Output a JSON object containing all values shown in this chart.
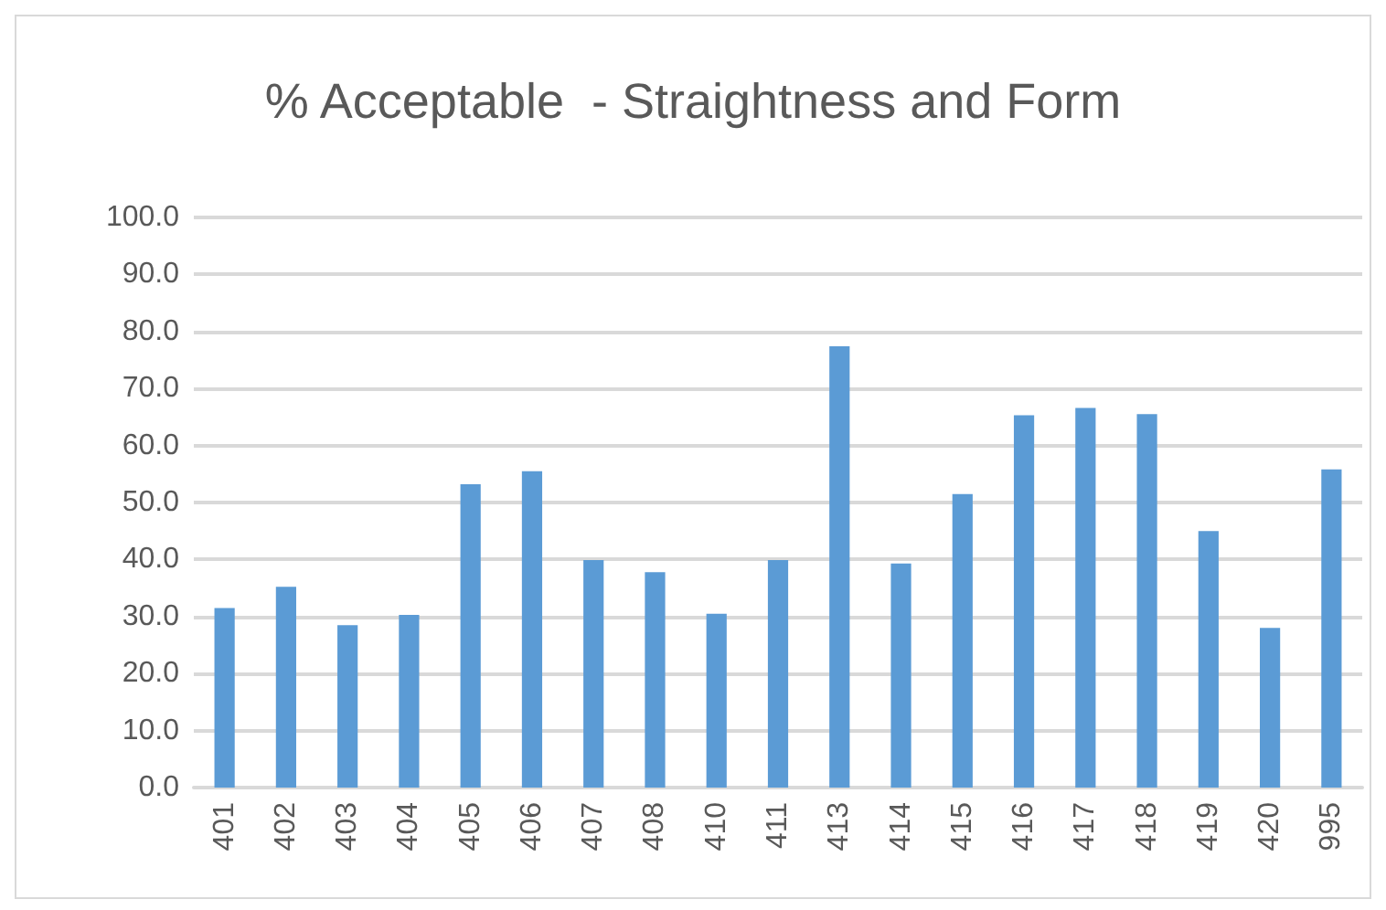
{
  "chart_data": {
    "type": "bar",
    "title": "% Acceptable  - Straightness and Form",
    "categories": [
      "401",
      "402",
      "403",
      "404",
      "405",
      "406",
      "407",
      "408",
      "410",
      "411",
      "413",
      "414",
      "415",
      "416",
      "417",
      "418",
      "419",
      "420",
      "995"
    ],
    "values": [
      31.5,
      35.2,
      28.5,
      30.3,
      53.2,
      55.5,
      39.9,
      37.8,
      30.5,
      39.9,
      77.4,
      39.3,
      51.5,
      65.3,
      66.6,
      65.5,
      45.0,
      28.0,
      55.8
    ],
    "color": "#5b9bd5",
    "ylim": [
      0,
      100
    ],
    "yticks": [
      {
        "value": 0,
        "label": "0.0"
      },
      {
        "value": 10,
        "label": "10.0"
      },
      {
        "value": 20,
        "label": "20.0"
      },
      {
        "value": 30,
        "label": "30.0"
      },
      {
        "value": 40,
        "label": "40.0"
      },
      {
        "value": 50,
        "label": "50.0"
      },
      {
        "value": 60,
        "label": "60.0"
      },
      {
        "value": 70,
        "label": "70.0"
      },
      {
        "value": 80,
        "label": "80.0"
      },
      {
        "value": 90,
        "label": "90.0"
      },
      {
        "value": 100,
        "label": "100.0"
      }
    ],
    "grid": "y"
  }
}
